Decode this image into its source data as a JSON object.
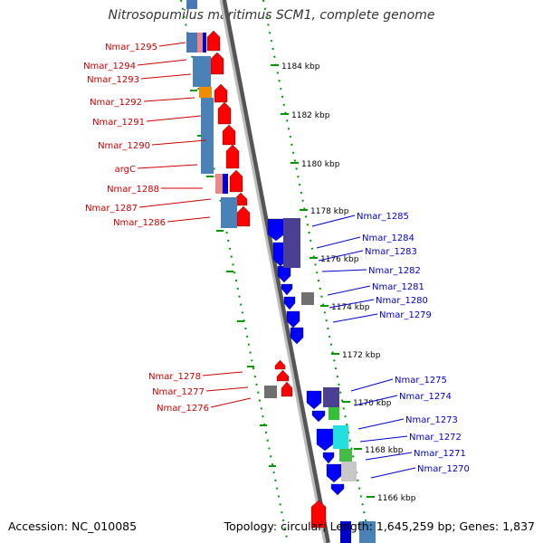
{
  "title": "Nitrosopumilus maritimus SCM1, complete genome",
  "footer": {
    "accession": "Accession: NC_010085",
    "summary": "Topology: circular; Length: 1,645,259 bp; Genes: 1,837"
  },
  "colors": {
    "forward_gene": "#ff0000",
    "reverse_gene": "#0000ff",
    "forward_label": "#cc0000",
    "reverse_label": "#0000cc",
    "tick": "#009900",
    "backbone": "#888888"
  },
  "ruler": [
    "1184 kbp",
    "1182 kbp",
    "1180 kbp",
    "1178 kbp",
    "1176 kbp",
    "1174 kbp",
    "1172 kbp",
    "1170 kbp",
    "1168 kbp",
    "1166 kbp"
  ],
  "forward_labels": [
    "Nmar_1295",
    "Nmar_1294",
    "Nmar_1293",
    "Nmar_1292",
    "Nmar_1291",
    "Nmar_1290",
    "argC",
    "Nmar_1288",
    "Nmar_1287",
    "Nmar_1286",
    "Nmar_1278",
    "Nmar_1277",
    "Nmar_1276"
  ],
  "reverse_labels": [
    "Nmar_1285",
    "Nmar_1284",
    "Nmar_1283",
    "Nmar_1282",
    "Nmar_1281",
    "Nmar_1280",
    "Nmar_1279",
    "Nmar_1275",
    "Nmar_1274",
    "Nmar_1273",
    "Nmar_1272",
    "Nmar_1271",
    "Nmar_1270"
  ]
}
